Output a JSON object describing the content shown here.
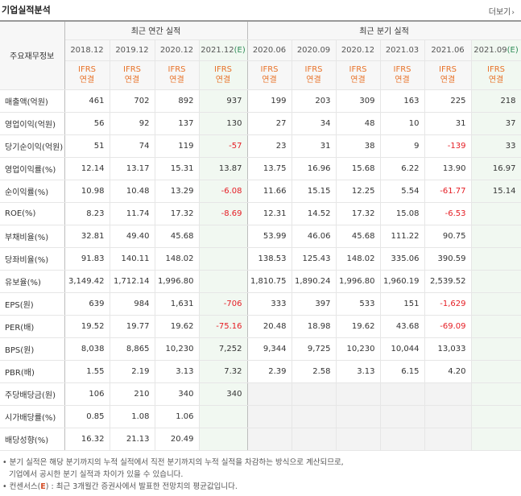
{
  "header": {
    "title": "기업실적분석",
    "more_label": "더보기"
  },
  "table": {
    "corner_label": "주요재무정보",
    "group_annual": "최근 연간 실적",
    "group_quarter": "최근 분기 실적",
    "periods": [
      "2018.12",
      "2019.12",
      "2020.12",
      "2021.12(E)",
      "2020.06",
      "2020.09",
      "2020.12",
      "2021.03",
      "2021.06",
      "2021.09(E)"
    ],
    "ifrs": "IFRS",
    "consolidated": "연결",
    "rows": [
      {
        "label": "매출액(억원)",
        "values": [
          "461",
          "702",
          "892",
          "937",
          "199",
          "203",
          "309",
          "163",
          "225",
          "218"
        ]
      },
      {
        "label": "영업이익(억원)",
        "values": [
          "56",
          "92",
          "137",
          "130",
          "27",
          "34",
          "48",
          "10",
          "31",
          "37"
        ]
      },
      {
        "label": "당기순이익(억원)",
        "values": [
          "51",
          "74",
          "119",
          "-57",
          "23",
          "31",
          "38",
          "9",
          "-139",
          "33"
        ]
      },
      {
        "label": "영업이익률(%)",
        "values": [
          "12.14",
          "13.17",
          "15.31",
          "13.87",
          "13.75",
          "16.96",
          "15.68",
          "6.22",
          "13.90",
          "16.97"
        ]
      },
      {
        "label": "순이익률(%)",
        "values": [
          "10.98",
          "10.48",
          "13.29",
          "-6.08",
          "11.66",
          "15.15",
          "12.25",
          "5.54",
          "-61.77",
          "15.14"
        ]
      },
      {
        "label": "ROE(%)",
        "values": [
          "8.23",
          "11.74",
          "17.32",
          "-8.69",
          "12.31",
          "14.52",
          "17.32",
          "15.08",
          "-6.53",
          ""
        ]
      },
      {
        "label": "부채비율(%)",
        "values": [
          "32.81",
          "49.40",
          "45.68",
          "",
          "53.99",
          "46.06",
          "45.68",
          "111.22",
          "90.75",
          ""
        ]
      },
      {
        "label": "당좌비율(%)",
        "values": [
          "91.83",
          "140.11",
          "148.02",
          "",
          "138.53",
          "125.43",
          "148.02",
          "335.06",
          "390.59",
          ""
        ]
      },
      {
        "label": "유보율(%)",
        "values": [
          "3,149.42",
          "1,712.14",
          "1,996.80",
          "",
          "1,810.75",
          "1,890.24",
          "1,996.80",
          "1,960.19",
          "2,539.52",
          ""
        ]
      },
      {
        "label": "EPS(원)",
        "values": [
          "639",
          "984",
          "1,631",
          "-706",
          "333",
          "397",
          "533",
          "151",
          "-1,629",
          ""
        ]
      },
      {
        "label": "PER(배)",
        "values": [
          "19.52",
          "19.77",
          "19.62",
          "-75.16",
          "20.48",
          "18.98",
          "19.62",
          "43.68",
          "-69.09",
          ""
        ]
      },
      {
        "label": "BPS(원)",
        "values": [
          "8,038",
          "8,865",
          "10,230",
          "7,252",
          "9,344",
          "9,725",
          "10,230",
          "10,044",
          "13,033",
          ""
        ]
      },
      {
        "label": "PBR(배)",
        "values": [
          "1.55",
          "2.19",
          "3.13",
          "7.32",
          "2.39",
          "2.58",
          "3.13",
          "6.15",
          "4.20",
          ""
        ]
      },
      {
        "label": "주당배당금(원)",
        "values": [
          "106",
          "210",
          "340",
          "340",
          "",
          "",
          "",
          "",
          "",
          ""
        ]
      },
      {
        "label": "시가배당률(%)",
        "values": [
          "0.85",
          "1.08",
          "1.06",
          "",
          "",
          "",
          "",
          "",
          "",
          ""
        ]
      },
      {
        "label": "배당성향(%)",
        "values": [
          "16.32",
          "21.13",
          "20.49",
          "",
          "",
          "",
          "",
          "",
          "",
          ""
        ]
      }
    ]
  },
  "notes": {
    "line1": "• 분기 실적은 해당 분기까지의 누적 실적에서 직전 분기까지의 누적 실적을 차감하는 방식으로 계산되므로,",
    "line2": "기업에서 공시한 분기 실적과 차이가 있을 수 있습니다.",
    "line3_prefix": "• 컨센서스(",
    "line3_accent": "E",
    "line3_suffix": ") : 최근 3개월간 증권사에서 발표한 전망치의 평균값입니다."
  },
  "colors": {
    "negative": "#e51c23",
    "ifrs": "#e8732a",
    "estimate": "#2e8b57",
    "estimate_bg": "#f1f8f1"
  }
}
